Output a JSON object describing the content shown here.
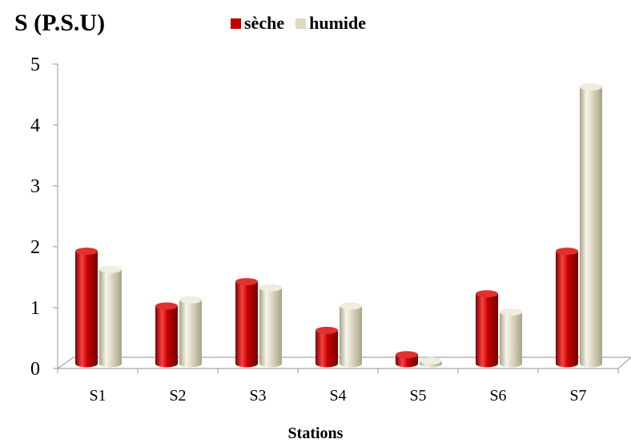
{
  "chart_data": {
    "type": "bar",
    "ylabel": "S (P.S.U)",
    "xlabel": "Stations",
    "categories": [
      "S1",
      "S2",
      "S3",
      "S4",
      "S5",
      "S6",
      "S7"
    ],
    "series": [
      {
        "name": "sèche",
        "color": "#c00000",
        "values": [
          1.9,
          1.0,
          1.4,
          0.6,
          0.2,
          1.2,
          1.9
        ]
      },
      {
        "name": "humide",
        "color": "#ddd9c3",
        "values": [
          1.6,
          1.1,
          1.3,
          1.0,
          0.1,
          0.9,
          4.6
        ]
      }
    ],
    "ylim": [
      0,
      5
    ],
    "yticks": [
      0,
      1,
      2,
      3,
      4,
      5
    ],
    "legend": "top",
    "grid": false
  }
}
